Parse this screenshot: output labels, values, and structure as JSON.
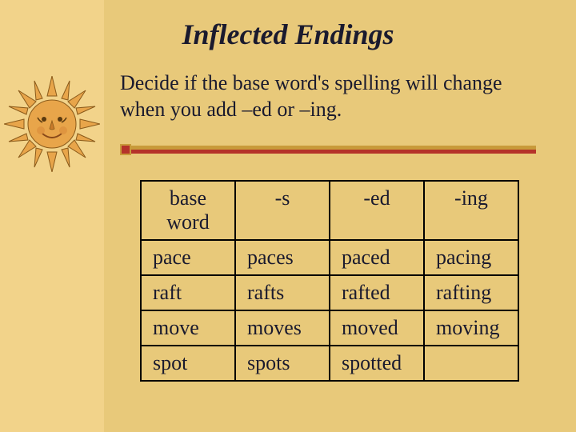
{
  "title": "Inflected Endings",
  "subtitle": "Decide if the base word's spelling will change when you add –ed or –ing.",
  "table": {
    "headers": [
      "base word",
      "-s",
      "-ed",
      "-ing"
    ],
    "rows": [
      [
        "pace",
        "paces",
        "paced",
        "pacing"
      ],
      [
        "raft",
        "rafts",
        "rafted",
        "rafting"
      ],
      [
        "move",
        "moves",
        "moved",
        "moving"
      ],
      [
        "spot",
        "spots",
        "spotted",
        ""
      ]
    ]
  },
  "colors": {
    "background": "#e8c97a",
    "left_band": "#f2d38a",
    "sun_fill": "#e8a54a",
    "sun_stroke": "#8a5a1a",
    "divider_top": "#c89a3a",
    "divider_bottom": "#b5332a",
    "text": "#1a1a2e",
    "border": "#000000"
  }
}
